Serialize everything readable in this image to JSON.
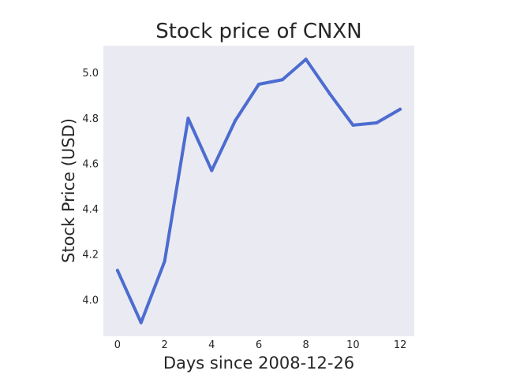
{
  "chart_data": {
    "type": "line",
    "title": "Stock price of CNXN",
    "xlabel": "Days since 2008-12-26",
    "ylabel": "Stock Price (USD)",
    "x": [
      0,
      1,
      2,
      3,
      4,
      5,
      6,
      7,
      8,
      9,
      10,
      11,
      12
    ],
    "series": [
      {
        "values": [
          4.13,
          3.9,
          4.17,
          4.8,
          4.57,
          4.79,
          4.95,
          4.97,
          5.06,
          4.91,
          4.77,
          4.78,
          4.84
        ],
        "color": "#4c6cd0"
      }
    ],
    "xlim": [
      -0.6,
      12.6
    ],
    "ylim": [
      3.84,
      5.12
    ],
    "x_ticks": [
      "0",
      "2",
      "4",
      "6",
      "8",
      "10",
      "12"
    ],
    "y_ticks": [
      "4.0",
      "4.2",
      "4.4",
      "4.6",
      "4.8",
      "5.0"
    ],
    "grid": false,
    "plot_background": "#eaeaf2"
  }
}
